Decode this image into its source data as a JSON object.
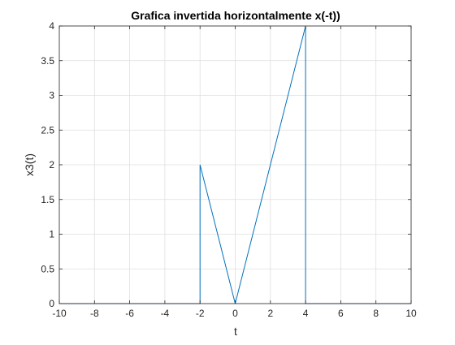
{
  "chart_data": {
    "type": "line",
    "title": "Grafica invertida horizontalmente x(-t))",
    "xlabel": "t",
    "ylabel": "x3(t)",
    "xlim": [
      -10,
      10
    ],
    "ylim": [
      0,
      4
    ],
    "xticks": [
      -10,
      -8,
      -6,
      -4,
      -2,
      0,
      2,
      4,
      6,
      8,
      10
    ],
    "xtick_labels": [
      "-10",
      "-8",
      "-6",
      "-4",
      "-2",
      "0",
      "2",
      "4",
      "6",
      "8",
      "10"
    ],
    "yticks": [
      0,
      0.5,
      1,
      1.5,
      2,
      2.5,
      3,
      3.5,
      4
    ],
    "ytick_labels": [
      "0",
      "0.5",
      "1",
      "1.5",
      "2",
      "2.5",
      "3",
      "3.5",
      "4"
    ],
    "grid": true,
    "series": [
      {
        "color": "#0072BD",
        "x": [
          -10,
          -2,
          -2,
          0,
          4,
          4,
          10
        ],
        "y": [
          0,
          0,
          2,
          0,
          4,
          0,
          0
        ]
      }
    ]
  }
}
